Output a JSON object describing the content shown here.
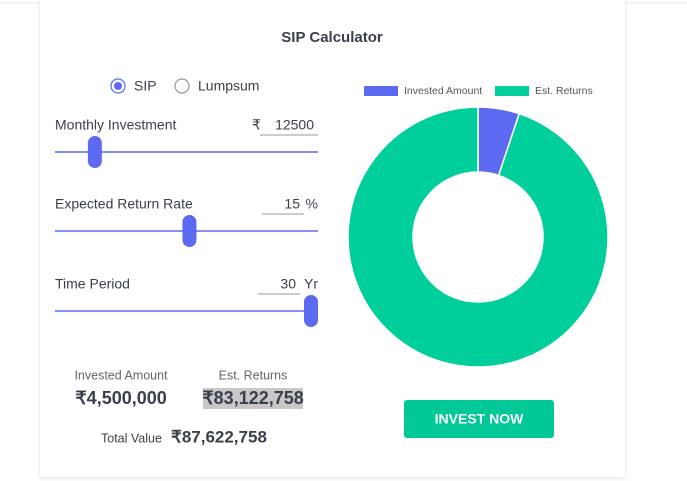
{
  "title": "SIP Calculator",
  "options": {
    "items": [
      "SIP",
      "Lumpsum"
    ],
    "selected": 0
  },
  "inputs": [
    {
      "label": "Monthly Investment",
      "prefix": "₹",
      "value": 12500,
      "range": [
        500,
        150000
      ]
    },
    {
      "label": "Expected Return Rate",
      "value": 15,
      "suffix": "%",
      "range": [
        1,
        30
      ]
    },
    {
      "label": "Time Period",
      "value": 30,
      "suffix": "Yr",
      "range": [
        1,
        30
      ]
    }
  ],
  "chart_data": {
    "type": "doughnut",
    "categories": [
      "Invested Amount",
      "Est. Returns"
    ],
    "values": [
      4500000,
      83122758
    ],
    "value_labels": [
      "₹4,500,000",
      "₹83,122,758"
    ],
    "colors": [
      "#5b6af0",
      "#00ce9b"
    ]
  },
  "total": {
    "label": "Total Value",
    "value": "₹87,622,758"
  },
  "button": "INVEST NOW"
}
